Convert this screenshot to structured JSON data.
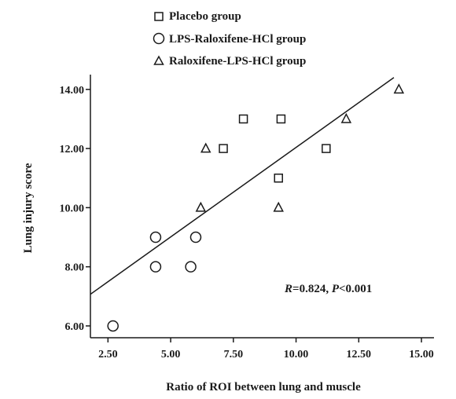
{
  "chart_data": {
    "type": "scatter",
    "title": "",
    "xlabel": "Ratio of ROI between lung and muscle",
    "ylabel": "Lung injury score",
    "xlim": [
      1.8,
      15.5
    ],
    "ylim": [
      5.6,
      14.5
    ],
    "xticks": [
      2.5,
      5.0,
      7.5,
      10.0,
      12.5,
      15.0
    ],
    "xtick_labels": [
      "2.50",
      "5.00",
      "7.50",
      "10.00",
      "12.50",
      "15.00"
    ],
    "yticks": [
      6,
      8,
      10,
      12,
      14
    ],
    "ytick_labels": [
      "6.00",
      "8.00",
      "10.00",
      "12.00",
      "14.00"
    ],
    "grid": false,
    "legend_position": "top",
    "series": [
      {
        "name": "Placebo group",
        "marker": "square",
        "points": [
          [
            7.1,
            12.0
          ],
          [
            7.9,
            13.0
          ],
          [
            9.4,
            13.0
          ],
          [
            9.3,
            11.0
          ],
          [
            11.2,
            12.0
          ]
        ]
      },
      {
        "name": "LPS-Raloxifene-HCl group",
        "marker": "circle",
        "points": [
          [
            2.7,
            6.0
          ],
          [
            4.4,
            8.0
          ],
          [
            4.4,
            9.0
          ],
          [
            5.8,
            8.0
          ],
          [
            6.0,
            9.0
          ]
        ]
      },
      {
        "name": "Raloxifene-LPS-HCl group",
        "marker": "triangle",
        "points": [
          [
            6.2,
            10.0
          ],
          [
            6.4,
            12.0
          ],
          [
            9.3,
            10.0
          ],
          [
            12.0,
            13.0
          ],
          [
            14.1,
            14.0
          ]
        ]
      }
    ],
    "fit_line": {
      "x": [
        1.8,
        13.9
      ],
      "y": [
        7.07,
        14.4
      ]
    },
    "annotation": {
      "r_symbol": "R",
      "r_value": "=0.824, ",
      "p_symbol": "P",
      "p_value": "<0.001"
    }
  }
}
